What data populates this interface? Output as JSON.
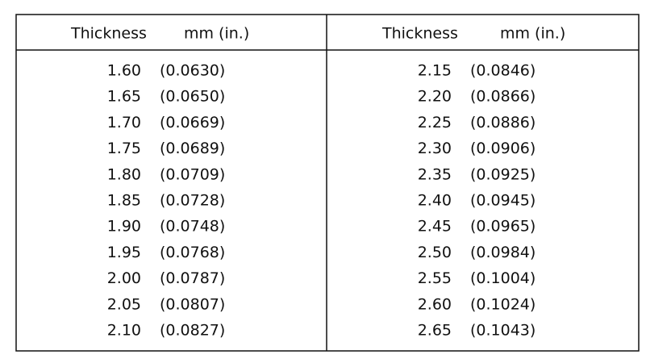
{
  "table": {
    "columns": [
      {
        "header": "Thickness",
        "unit": "mm (in.)",
        "rows": [
          [
            "1.60",
            "(0.0630)"
          ],
          [
            "1.65",
            "(0.0650)"
          ],
          [
            "1.70",
            "(0.0669)"
          ],
          [
            "1.75",
            "(0.0689)"
          ],
          [
            "1.80",
            "(0.0709)"
          ],
          [
            "1.85",
            "(0.0728)"
          ],
          [
            "1.90",
            "(0.0748)"
          ],
          [
            "1.95",
            "(0.0768)"
          ],
          [
            "2.00",
            "(0.0787)"
          ],
          [
            "2.05",
            "(0.0807)"
          ],
          [
            "2.10",
            "(0.0827)"
          ]
        ]
      },
      {
        "header": "Thickness",
        "unit": "mm (in.)",
        "rows": [
          [
            "2.15",
            "(0.0846)"
          ],
          [
            "2.20",
            "(0.0866)"
          ],
          [
            "2.25",
            "(0.0886)"
          ],
          [
            "2.30",
            "(0.0906)"
          ],
          [
            "2.35",
            "(0.0925)"
          ],
          [
            "2.40",
            "(0.0945)"
          ],
          [
            "2.45",
            "(0.0965)"
          ],
          [
            "2.50",
            "(0.0984)"
          ],
          [
            "2.55",
            "(0.1004)"
          ],
          [
            "2.60",
            "(0.1024)"
          ],
          [
            "2.65",
            "(0.1043)"
          ]
        ]
      }
    ]
  }
}
